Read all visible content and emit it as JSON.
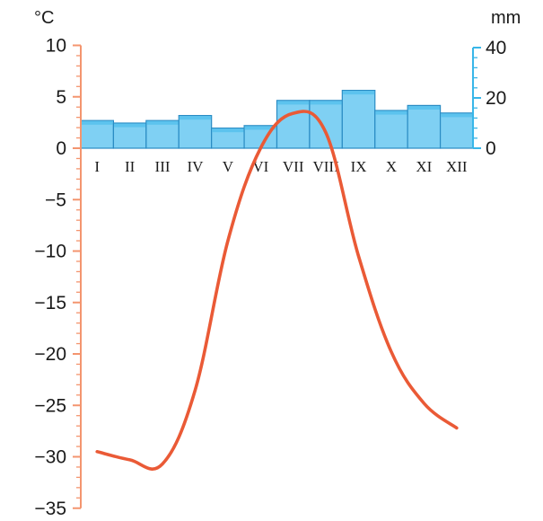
{
  "chart_data": {
    "type": "bar+line",
    "title": "",
    "categories": [
      "I",
      "II",
      "III",
      "IV",
      "V",
      "VI",
      "VII",
      "VIII",
      "IX",
      "X",
      "XI",
      "XII"
    ],
    "series": [
      {
        "type": "bar",
        "axis": "right",
        "values": [
          11,
          10,
          11,
          13,
          8,
          9,
          19,
          19,
          23,
          15,
          17,
          14
        ]
      },
      {
        "type": "line",
        "axis": "left",
        "values": [
          -29.5,
          -30.3,
          -30.7,
          -23.5,
          -9.0,
          0.0,
          3.4,
          1.5,
          -10.5,
          -19.8,
          -24.8,
          -27.2
        ]
      }
    ],
    "left_axis": {
      "unit": "°C",
      "ylim": [
        -35,
        10
      ],
      "ticks": [
        "10",
        "5",
        "0",
        "−5",
        "−10",
        "−15",
        "−20",
        "−25",
        "−30",
        "−35"
      ]
    },
    "right_axis": {
      "unit": "mm",
      "ylim": [
        0,
        40
      ],
      "ticks": [
        "40",
        "20",
        "0"
      ]
    },
    "colors": {
      "left_axis": "#f4956f",
      "right_axis": "#38b6e8",
      "bar_fill": "#7fd0f3",
      "bar_top": "#5cc3ee",
      "bar_stroke": "#2a8cc4",
      "line": "#ea5a36"
    },
    "grid": false,
    "legend": "none"
  }
}
